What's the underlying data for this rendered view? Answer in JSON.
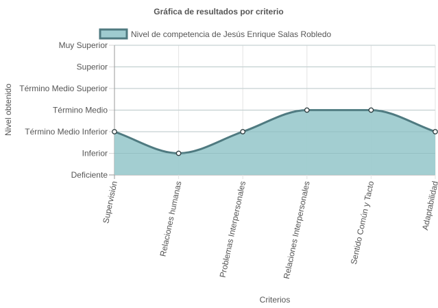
{
  "chart_data": {
    "type": "area",
    "title": "Gráfica de resultados por criterio",
    "xlabel": "Criterios",
    "ylabel": "Nivel obtenido",
    "categories": [
      "Supervisión",
      "Relaciones humanas",
      "Problemas Interpersonales",
      "Relaciones Interpersonales",
      "Sentido Común y Tacto",
      "Adaptabilidad"
    ],
    "y_levels": [
      "Deficiente",
      "Inferior",
      "Término Medio Inferior",
      "Término Medio",
      "Término Medio Superior",
      "Superior",
      "Muy Superior"
    ],
    "ylim": [
      0,
      6
    ],
    "grid": true,
    "legend_position": "top",
    "series": [
      {
        "name": "Nivel de competencia de Jesús Enrique Salas Robledo",
        "values": [
          2,
          1,
          2,
          3,
          3,
          2
        ],
        "fill_color": "#9ecbcf",
        "line_color": "#4f7a80"
      }
    ]
  }
}
